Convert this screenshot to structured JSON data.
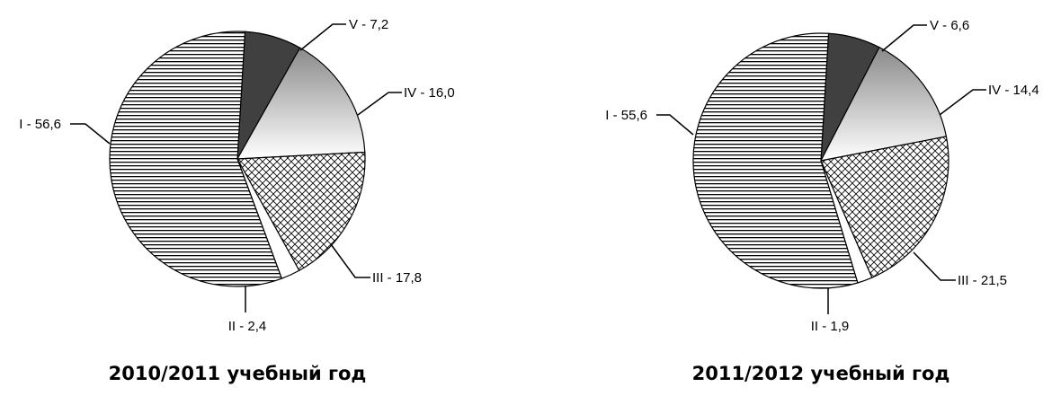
{
  "chart_data": [
    {
      "type": "pie",
      "title": "2010/2011 учебный год",
      "slices": [
        {
          "label": "V - 7,2",
          "value": 7.2,
          "pattern": "dark"
        },
        {
          "label": "IV - 16,0",
          "value": 16.0,
          "pattern": "gradient"
        },
        {
          "label": "III - 17,8",
          "value": 17.8,
          "pattern": "crosshatch"
        },
        {
          "label": "II - 2,4",
          "value": 2.4,
          "pattern": "white"
        },
        {
          "label": "I - 56,6",
          "value": 56.6,
          "pattern": "hstripes"
        }
      ],
      "legend": "none"
    },
    {
      "type": "pie",
      "title": "2011/2012 учебный год",
      "slices": [
        {
          "label": "V - 6,6",
          "value": 6.6,
          "pattern": "dark"
        },
        {
          "label": "IV - 14,4",
          "value": 14.4,
          "pattern": "gradient"
        },
        {
          "label": "III - 21,5",
          "value": 21.5,
          "pattern": "crosshatch"
        },
        {
          "label": "II - 1,9",
          "value": 1.9,
          "pattern": "white"
        },
        {
          "label": "I - 55,6",
          "value": 55.6,
          "pattern": "hstripes"
        }
      ],
      "legend": "none"
    }
  ],
  "colors": {
    "dark": "#404040",
    "outline": "#000000",
    "stripe": "#000000",
    "gradient_light": "#ffffff",
    "gradient_dark": "#8a8a8a"
  }
}
